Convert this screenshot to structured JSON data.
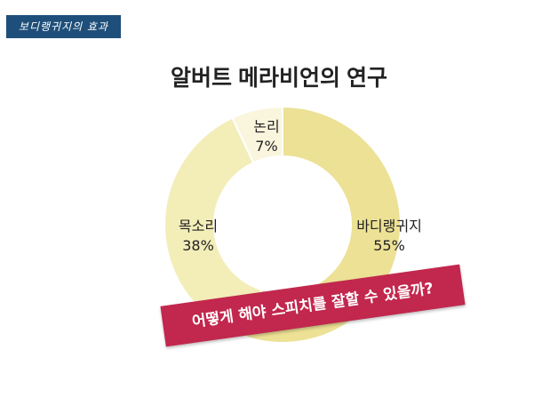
{
  "header_tag": "보디랭귀지의 효과",
  "chart_data": {
    "type": "pie",
    "title": "알버트 메라비언의 연구",
    "slices": [
      {
        "label": "바디랭귀지",
        "value": 55,
        "value_label": "55%",
        "color": "#ece195"
      },
      {
        "label": "목소리",
        "value": 38,
        "value_label": "38%",
        "color": "#f3edb8"
      },
      {
        "label": "논리",
        "value": 7,
        "value_label": "7%",
        "color": "#faf6de"
      }
    ],
    "donut": true
  },
  "banner": "어떻게 해야 스피치를 잘할 수 있을까?"
}
